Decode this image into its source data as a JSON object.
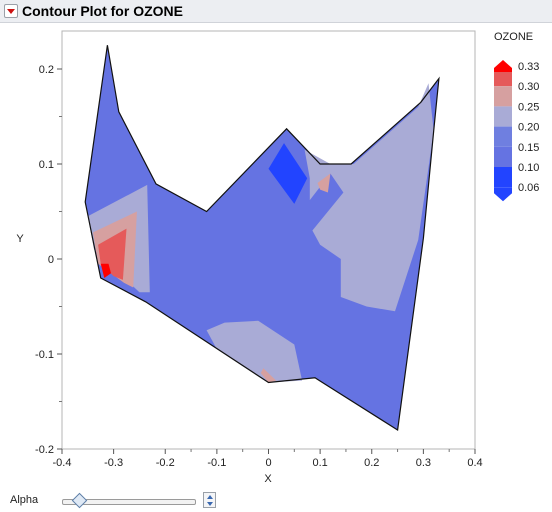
{
  "window": {
    "title": "Contour Plot for OZONE"
  },
  "controls": {
    "alpha_label": "Alpha",
    "alpha_value": 0.15
  },
  "chart_data": {
    "type": "contour",
    "xlabel": "X",
    "ylabel": "Y",
    "xlim": [
      -0.4,
      0.4
    ],
    "ylim": [
      -0.2,
      0.24
    ],
    "x_ticks": [
      "-0.4",
      "-0.3",
      "-0.2",
      "-0.1",
      "0",
      "0.1",
      "0.2",
      "0.3",
      "0.4"
    ],
    "y_ticks": [
      "-0.2",
      "-0.1",
      "0",
      "0.1",
      "0.2"
    ],
    "legend": {
      "title": "OZONE",
      "placement": "right",
      "levels": [
        "0.33",
        "0.30",
        "0.25",
        "0.20",
        "0.15",
        "0.10",
        "0.06"
      ],
      "colors": [
        "#ff0000",
        "#e55a5a",
        "#d6a0a0",
        "#a9abd6",
        "#6f7fe0",
        "#6573e2",
        "#2244ff"
      ]
    },
    "boundary": [
      [
        -0.312,
        0.225
      ],
      [
        -0.29,
        0.155
      ],
      [
        -0.218,
        0.079
      ],
      [
        -0.12,
        0.05
      ],
      [
        0.035,
        0.137
      ],
      [
        0.1,
        0.1
      ],
      [
        0.16,
        0.1
      ],
      [
        0.295,
        0.165
      ],
      [
        0.33,
        0.19
      ],
      [
        0.32,
        0.135
      ],
      [
        0.3,
        0.022
      ],
      [
        0.25,
        -0.18
      ],
      [
        0.09,
        -0.125
      ],
      [
        0.0,
        -0.13
      ],
      [
        -0.238,
        -0.045
      ],
      [
        -0.325,
        -0.02
      ],
      [
        -0.355,
        0.06
      ]
    ],
    "regions": [
      {
        "level": "0.15-0.20",
        "color": "#a9abd6",
        "points": [
          [
            -0.35,
            0.045
          ],
          [
            -0.235,
            0.078
          ],
          [
            -0.23,
            -0.035
          ],
          [
            -0.25,
            -0.035
          ],
          [
            -0.338,
            0.01
          ]
        ]
      },
      {
        "level": "0.20-0.25",
        "color": "#d6a0a0",
        "points": [
          [
            -0.34,
            0.028
          ],
          [
            -0.255,
            0.05
          ],
          [
            -0.262,
            -0.03
          ],
          [
            -0.28,
            -0.025
          ],
          [
            -0.33,
            -0.005
          ]
        ]
      },
      {
        "level": "0.25-0.30",
        "color": "#e55a5a",
        "points": [
          [
            -0.33,
            0.015
          ],
          [
            -0.275,
            0.032
          ],
          [
            -0.282,
            -0.022
          ],
          [
            -0.3,
            -0.018
          ],
          [
            -0.325,
            -0.005
          ]
        ]
      },
      {
        "level": "0.30-0.33",
        "color": "#ff0000",
        "points": [
          [
            -0.325,
            -0.005
          ],
          [
            -0.31,
            -0.005
          ],
          [
            -0.305,
            -0.015
          ],
          [
            -0.318,
            -0.02
          ]
        ]
      },
      {
        "level": "0.06-0.10",
        "color": "#2244ff",
        "points": [
          [
            0.03,
            0.122
          ],
          [
            0.075,
            0.085
          ],
          [
            0.05,
            0.058
          ],
          [
            0.0,
            0.095
          ]
        ]
      },
      {
        "level": "0.15-0.20",
        "color": "#a9abd6",
        "points": [
          [
            0.07,
            0.115
          ],
          [
            0.12,
            0.1
          ],
          [
            0.165,
            0.1
          ],
          [
            0.29,
            0.16
          ],
          [
            0.31,
            0.185
          ],
          [
            0.32,
            0.135
          ],
          [
            0.29,
            0.02
          ],
          [
            0.245,
            -0.055
          ],
          [
            0.19,
            -0.05
          ],
          [
            0.14,
            -0.04
          ],
          [
            0.14,
            0.0
          ],
          [
            0.1,
            0.015
          ],
          [
            0.085,
            0.03
          ],
          [
            0.145,
            0.07
          ],
          [
            0.12,
            0.09
          ],
          [
            0.08,
            0.062
          ],
          [
            0.08,
            0.085
          ]
        ]
      },
      {
        "level": "0.20-0.25",
        "color": "#d6a0a0",
        "points": [
          [
            0.095,
            0.08
          ],
          [
            0.12,
            0.09
          ],
          [
            0.115,
            0.07
          ],
          [
            0.1,
            0.073
          ]
        ]
      },
      {
        "level": "0.15-0.20",
        "color": "#a9abd6",
        "points": [
          [
            -0.085,
            -0.067
          ],
          [
            -0.02,
            -0.065
          ],
          [
            0.05,
            -0.09
          ],
          [
            0.065,
            -0.128
          ],
          [
            0.0,
            -0.13
          ],
          [
            -0.1,
            -0.095
          ],
          [
            -0.12,
            -0.075
          ]
        ]
      },
      {
        "level": "0.20-0.25",
        "color": "#d6a0a0",
        "points": [
          [
            -0.01,
            -0.115
          ],
          [
            0.015,
            -0.128
          ],
          [
            0.0,
            -0.13
          ],
          [
            -0.015,
            -0.12
          ]
        ]
      }
    ]
  }
}
